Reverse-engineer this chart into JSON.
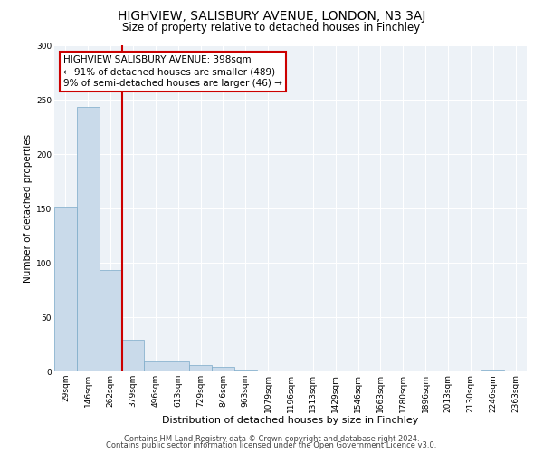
{
  "title": "HIGHVIEW, SALISBURY AVENUE, LONDON, N3 3AJ",
  "subtitle": "Size of property relative to detached houses in Finchley",
  "categories": [
    "29sqm",
    "146sqm",
    "262sqm",
    "379sqm",
    "496sqm",
    "613sqm",
    "729sqm",
    "846sqm",
    "963sqm",
    "1079sqm",
    "1196sqm",
    "1313sqm",
    "1429sqm",
    "1546sqm",
    "1663sqm",
    "1780sqm",
    "1896sqm",
    "2013sqm",
    "2130sqm",
    "2246sqm",
    "2363sqm"
  ],
  "values": [
    151,
    243,
    93,
    29,
    9,
    9,
    6,
    4,
    2,
    0,
    0,
    0,
    0,
    0,
    0,
    0,
    0,
    0,
    0,
    2,
    0
  ],
  "bar_color": "#c9daea",
  "bar_edge_color": "#7aaac8",
  "bar_edge_width": 0.5,
  "ref_line_index": 2.5,
  "ref_line_color": "#cc0000",
  "annotation_line1": "HIGHVIEW SALISBURY AVENUE: 398sqm",
  "annotation_line2": "← 91% of detached houses are smaller (489)",
  "annotation_line3": "9% of semi-detached houses are larger (46) →",
  "annotation_box_color": "#cc0000",
  "annotation_text_fontsize": 7.5,
  "xlabel": "Distribution of detached houses by size in Finchley",
  "ylabel": "Number of detached properties",
  "ylim": [
    0,
    300
  ],
  "yticks": [
    0,
    50,
    100,
    150,
    200,
    250,
    300
  ],
  "title_fontsize": 10,
  "subtitle_fontsize": 8.5,
  "xlabel_fontsize": 8,
  "ylabel_fontsize": 7.5,
  "tick_fontsize": 6.5,
  "footer_line1": "Contains HM Land Registry data © Crown copyright and database right 2024.",
  "footer_line2": "Contains public sector information licensed under the Open Government Licence v3.0.",
  "footer_fontsize": 6,
  "bg_color": "#edf2f7",
  "grid_color": "#ffffff",
  "fig_bg_color": "#ffffff"
}
